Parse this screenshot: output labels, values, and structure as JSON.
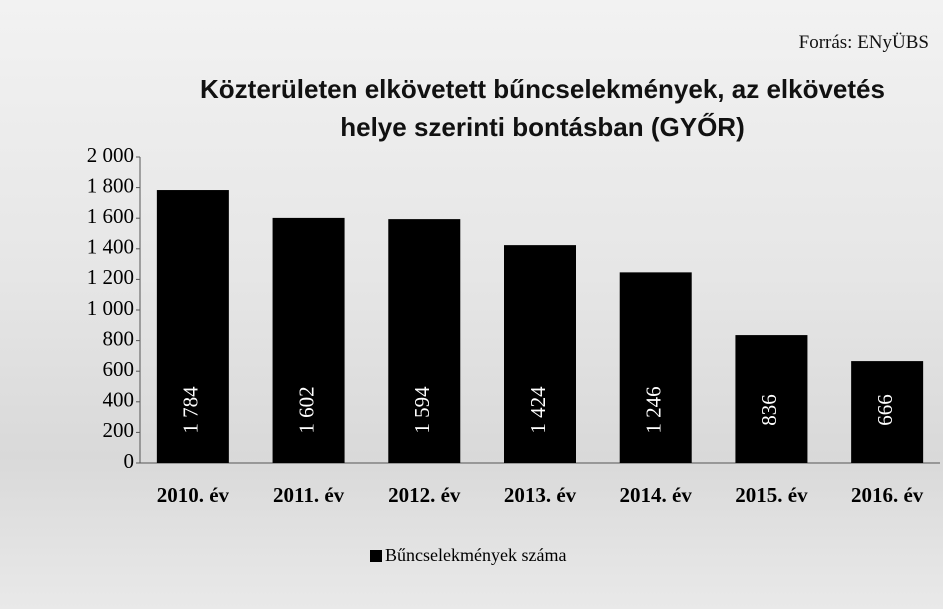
{
  "chart_data": {
    "type": "bar",
    "source": "Forrás: ENyÜBS",
    "title": "Közterületen elkövetett bűncselekmények, az elkövetés helye szerinti bontásban (GYŐR)",
    "categories": [
      "2010. év",
      "2011. év",
      "2012. év",
      "2013. év",
      "2014. év",
      "2015. év",
      "2016. év"
    ],
    "series": [
      {
        "name": "Bűncselekmények száma",
        "color": "#000000",
        "values": [
          1784,
          1602,
          1594,
          1424,
          1246,
          836,
          666
        ],
        "value_labels": [
          "1 784",
          "1 602",
          "1 594",
          "1 424",
          "1 246",
          "836",
          "666"
        ]
      }
    ],
    "ylim": [
      0,
      2000
    ],
    "yticks": [
      0,
      200,
      400,
      600,
      800,
      {
        "value": 1000,
        "label": "1 000"
      },
      {
        "value": 1200,
        "label": "1 200"
      },
      {
        "value": 1400,
        "label": "1 400"
      },
      {
        "value": 1600,
        "label": "1 600"
      },
      {
        "value": 1800,
        "label": "1 800"
      },
      {
        "value": 2000,
        "label": "2 000"
      }
    ],
    "legend": "bottom"
  }
}
